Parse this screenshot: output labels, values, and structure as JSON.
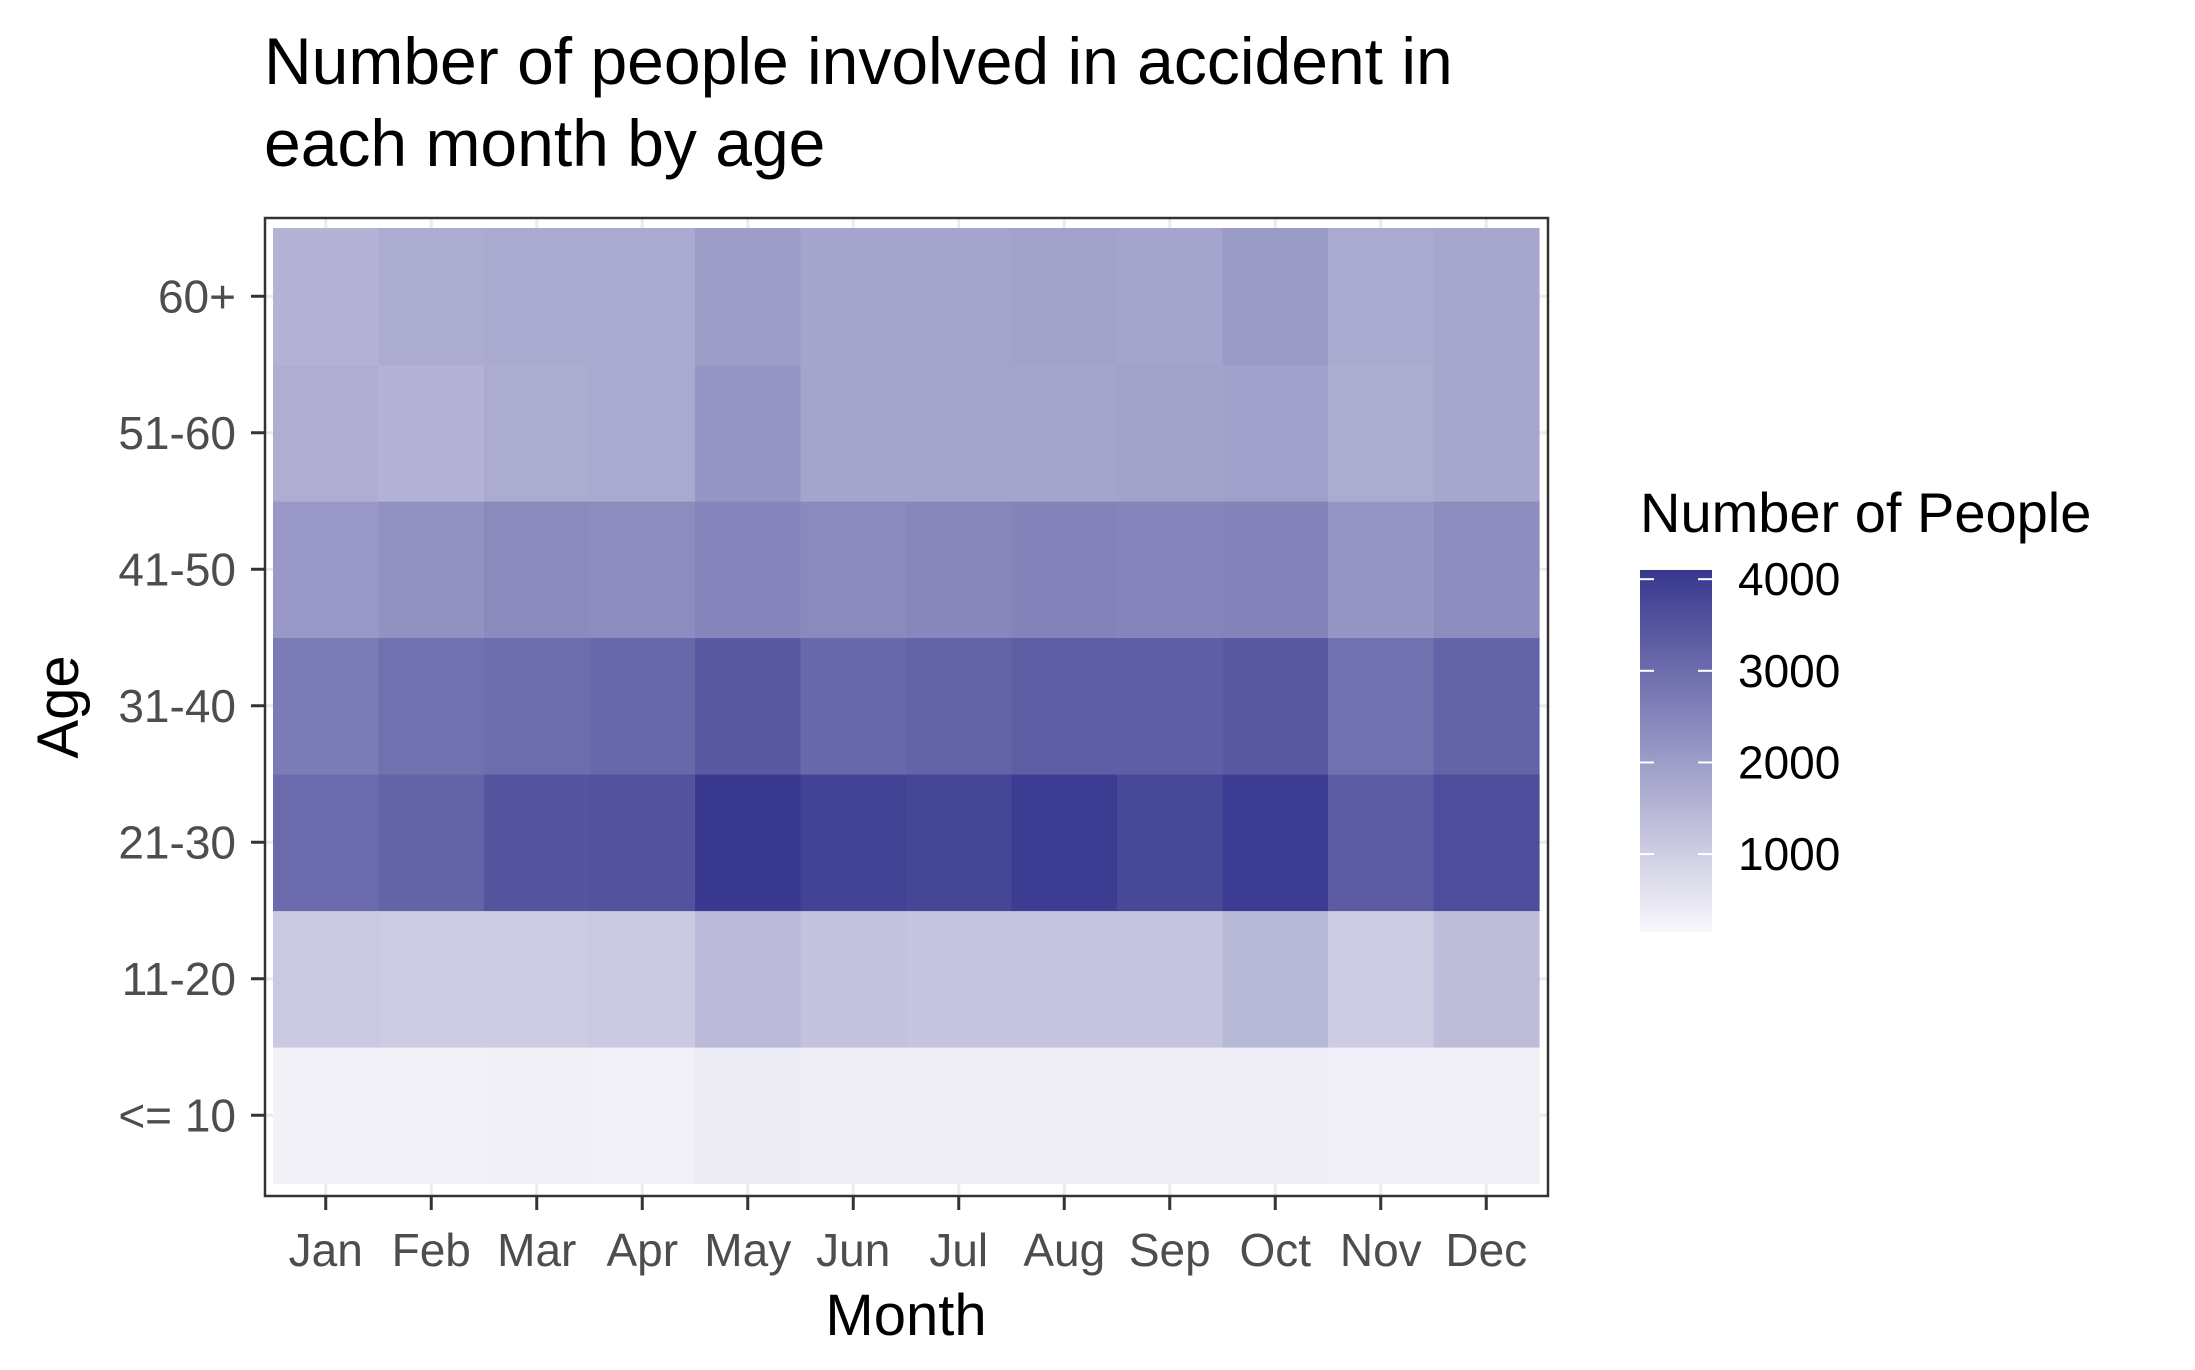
{
  "chart_data": {
    "type": "heatmap",
    "title": [
      "Number of people involved in accident in",
      "each month by age"
    ],
    "xlabel": "Month",
    "ylabel": "Age",
    "x_categories": [
      "Jan",
      "Feb",
      "Mar",
      "Apr",
      "May",
      "Jun",
      "Jul",
      "Aug",
      "Sep",
      "Oct",
      "Nov",
      "Dec"
    ],
    "y_categories": [
      "<= 10",
      "11-20",
      "21-30",
      "31-40",
      "41-50",
      "51-60",
      "60+"
    ],
    "values": [
      [
        250,
        270,
        300,
        280,
        380,
        350,
        340,
        360,
        330,
        350,
        310,
        320
      ],
      [
        1100,
        1050,
        1050,
        1100,
        1400,
        1250,
        1200,
        1200,
        1200,
        1450,
        1050,
        1350
      ],
      [
        3050,
        3200,
        3500,
        3550,
        4050,
        3850,
        3800,
        4000,
        3750,
        4000,
        3350,
        3650
      ],
      [
        2700,
        2900,
        3000,
        3100,
        3400,
        3100,
        3200,
        3300,
        3300,
        3400,
        2900,
        3200
      ],
      [
        2100,
        2250,
        2400,
        2350,
        2500,
        2400,
        2450,
        2550,
        2500,
        2550,
        2150,
        2350
      ],
      [
        1650,
        1550,
        1700,
        1750,
        2150,
        1850,
        1850,
        1850,
        1900,
        1950,
        1700,
        1800
      ],
      [
        1550,
        1700,
        1750,
        1750,
        2000,
        1850,
        1850,
        1900,
        1850,
        2050,
        1750,
        1800
      ]
    ],
    "legend": {
      "title": "Number of People",
      "ticks": [
        1000,
        2000,
        3000,
        4000
      ],
      "range": [
        150,
        4100
      ],
      "color_low": "#f8f7fb",
      "color_high": "#37378f"
    },
    "grid": true,
    "legend_position": "right"
  }
}
